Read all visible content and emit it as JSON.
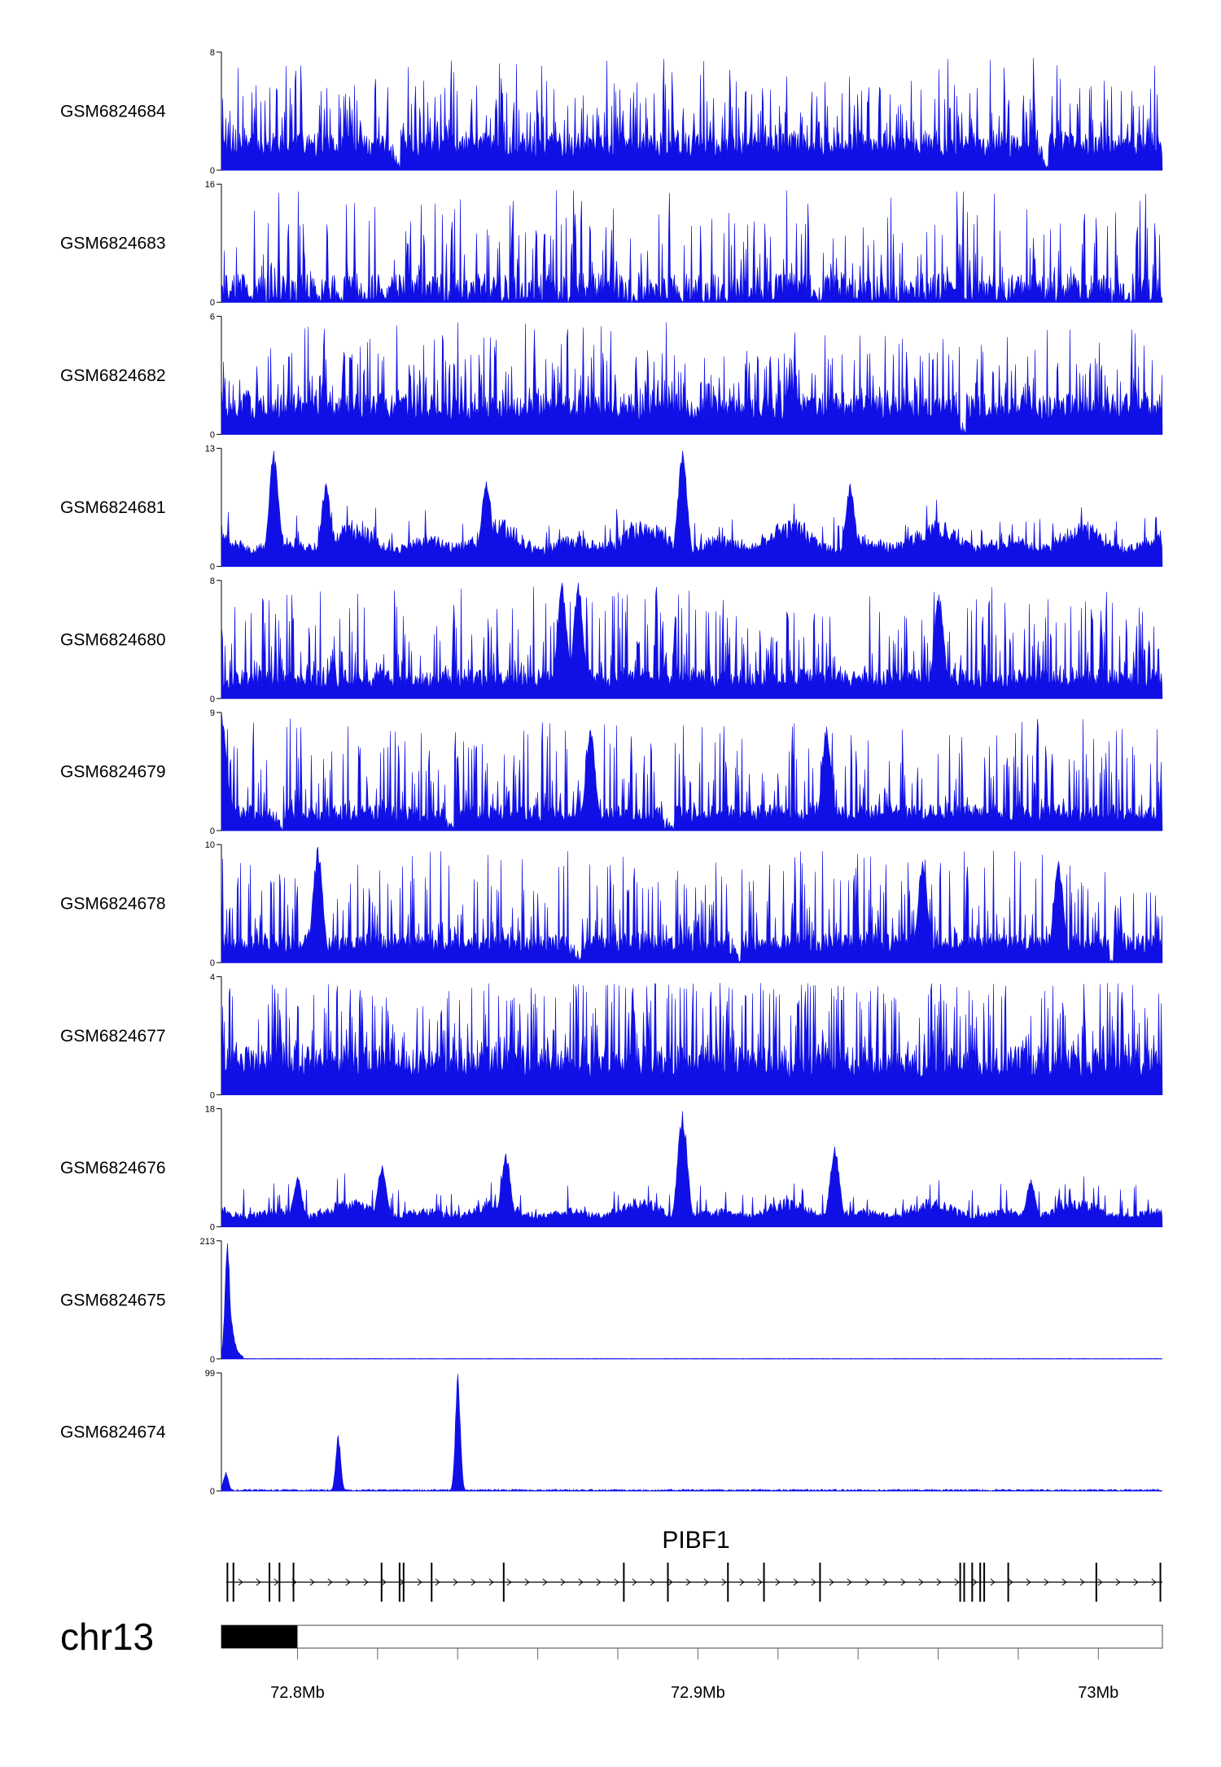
{
  "chart_data": {
    "type": "area",
    "title": "",
    "chromosome": "chr13",
    "x_unit": "Mb",
    "xlim": [
      72.781,
      73.016
    ],
    "x_ticks": [
      {
        "value": 72.8,
        "label": "72.8Mb"
      },
      {
        "value": 72.9,
        "label": "72.9Mb"
      },
      {
        "value": 73.0,
        "label": "73Mb"
      }
    ],
    "x_minor_ticks": [
      72.8,
      72.82,
      72.84,
      72.86,
      72.88,
      72.9,
      72.92,
      72.94,
      72.96,
      72.98,
      73.0
    ],
    "ideogram": {
      "highlight_start": 72.781,
      "highlight_end": 72.8,
      "color": "#000000"
    },
    "series_color": "#1010e6",
    "tracks": [
      {
        "name": "GSM6824684",
        "ymax": 8,
        "ytick_min": "0",
        "ytick_max": "8",
        "style": "dense",
        "base": 0.32,
        "spike": 0.72,
        "gap": 0.1,
        "seed": 11,
        "peaks": []
      },
      {
        "name": "GSM6824683",
        "ymax": 16,
        "ytick_min": "0",
        "ytick_max": "16",
        "style": "sparse",
        "base": 0.25,
        "spike": 0.7,
        "gap": 0.35,
        "seed": 23,
        "peaks": []
      },
      {
        "name": "GSM6824682",
        "ymax": 6,
        "ytick_min": "0",
        "ytick_max": "6",
        "style": "dense",
        "base": 0.35,
        "spike": 0.7,
        "gap": 0.05,
        "seed": 37,
        "peaks": []
      },
      {
        "name": "GSM6824681",
        "ymax": 13,
        "ytick_min": "0",
        "ytick_max": "13",
        "style": "wavy",
        "base": 0.3,
        "spike": 0.55,
        "gap": 0.0,
        "seed": 41,
        "peaks": [
          [
            72.794,
            0.98
          ],
          [
            72.896,
            0.98
          ],
          [
            72.847,
            0.72
          ],
          [
            72.807,
            0.7
          ],
          [
            72.938,
            0.7
          ]
        ]
      },
      {
        "name": "GSM6824680",
        "ymax": 8,
        "ytick_min": "0",
        "ytick_max": "8",
        "style": "dense",
        "base": 0.25,
        "spike": 0.78,
        "gap": 0.06,
        "seed": 53,
        "peaks": [
          [
            72.866,
            0.98
          ],
          [
            72.87,
            0.98
          ],
          [
            72.96,
            0.88
          ]
        ]
      },
      {
        "name": "GSM6824679",
        "ymax": 9,
        "ytick_min": "0",
        "ytick_max": "9",
        "style": "dense",
        "base": 0.22,
        "spike": 0.72,
        "gap": 0.08,
        "seed": 67,
        "peaks": [
          [
            72.781,
            0.98
          ],
          [
            72.873,
            0.85
          ],
          [
            72.932,
            0.88
          ]
        ]
      },
      {
        "name": "GSM6824678",
        "ymax": 10,
        "ytick_min": "0",
        "ytick_max": "10",
        "style": "dense",
        "base": 0.25,
        "spike": 0.72,
        "gap": 0.1,
        "seed": 79,
        "peaks": [
          [
            72.805,
            0.98
          ],
          [
            72.956,
            0.86
          ],
          [
            72.99,
            0.86
          ]
        ]
      },
      {
        "name": "GSM6824677",
        "ymax": 4,
        "ytick_min": "0",
        "ytick_max": "4",
        "style": "dense",
        "base": 0.42,
        "spike": 0.9,
        "gap": 0.04,
        "seed": 83,
        "peaks": []
      },
      {
        "name": "GSM6824676",
        "ymax": 18,
        "ytick_min": "0",
        "ytick_max": "18",
        "style": "wavy",
        "base": 0.18,
        "spike": 0.42,
        "gap": 0.0,
        "seed": 97,
        "peaks": [
          [
            72.896,
            0.98
          ],
          [
            72.852,
            0.62
          ],
          [
            72.934,
            0.68
          ],
          [
            72.8,
            0.42
          ],
          [
            72.821,
            0.52
          ],
          [
            72.983,
            0.4
          ]
        ]
      },
      {
        "name": "GSM6824675",
        "ymax": 213,
        "ytick_min": "0",
        "ytick_max": "213",
        "style": "single",
        "base": 0.004,
        "spike": 0.01,
        "gap": 0.0,
        "seed": 101,
        "peaks": [
          [
            72.7825,
            0.98
          ]
        ]
      },
      {
        "name": "GSM6824674",
        "ymax": 99,
        "ytick_min": "0",
        "ytick_max": "99",
        "style": "single",
        "base": 0.015,
        "spike": 0.03,
        "gap": 0.0,
        "seed": 113,
        "peaks": [
          [
            72.81,
            0.47
          ],
          [
            72.84,
            0.99
          ],
          [
            72.782,
            0.16
          ]
        ]
      }
    ],
    "gene": {
      "name": "PIBF1",
      "strand": "+",
      "start": 72.783,
      "end": 73.016,
      "exons": [
        72.7825,
        72.784,
        72.793,
        72.7955,
        72.799,
        72.821,
        72.8255,
        72.8265,
        72.8335,
        72.8515,
        72.8815,
        72.8925,
        72.9075,
        72.9165,
        72.9305,
        72.9655,
        72.9665,
        72.9685,
        72.9705,
        72.9715,
        72.9775,
        72.9995,
        73.0155
      ]
    }
  }
}
